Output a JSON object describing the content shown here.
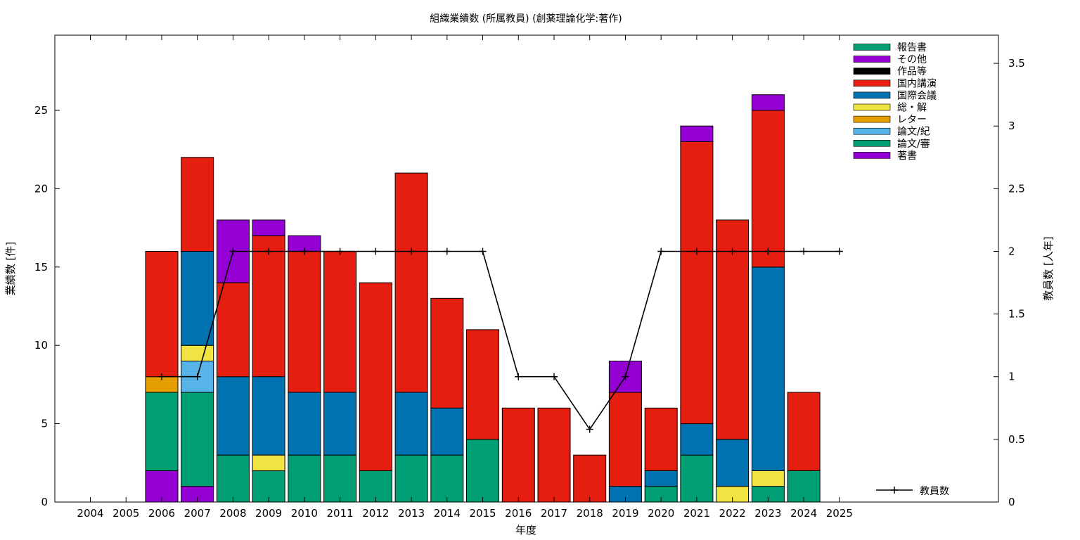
{
  "chart_data": {
    "type": "bar",
    "stacked": true,
    "title": "組織業績数 (所属教員) (創薬理論化学:著作)",
    "xlabel": "年度",
    "ylabel": "業績数 [件]",
    "y2label": "教員数 [人年]",
    "ylim": [
      0,
      29.8
    ],
    "y2lim": [
      0,
      3.725
    ],
    "yticks": [
      0,
      5,
      10,
      15,
      20,
      25
    ],
    "y2ticks": [
      "0",
      "0.5",
      "1",
      "1.5",
      "2",
      "2.5",
      "3",
      "3.5"
    ],
    "grid": false,
    "legend_position": "top-right",
    "categories": [
      "2004",
      "2005",
      "2006",
      "2007",
      "2008",
      "2009",
      "2010",
      "2011",
      "2012",
      "2013",
      "2014",
      "2015",
      "2016",
      "2017",
      "2018",
      "2019",
      "2020",
      "2021",
      "2022",
      "2023",
      "2024",
      "2025"
    ],
    "series": [
      {
        "name": "著書",
        "color": "#9400d3",
        "values": [
          0,
          0,
          2,
          1,
          0,
          0,
          0,
          0,
          0,
          0,
          0,
          0,
          0,
          0,
          0,
          0,
          0,
          0,
          0,
          0,
          0,
          0
        ]
      },
      {
        "name": "論文/審",
        "color": "#009e73",
        "values": [
          0,
          0,
          5,
          6,
          3,
          2,
          3,
          3,
          2,
          3,
          3,
          4,
          0,
          0,
          0,
          0,
          1,
          3,
          0,
          1,
          2,
          0
        ]
      },
      {
        "name": "論文/紀",
        "color": "#56b4e9",
        "values": [
          0,
          0,
          0,
          2,
          0,
          0,
          0,
          0,
          0,
          0,
          0,
          0,
          0,
          0,
          0,
          0,
          0,
          0,
          0,
          0,
          0,
          0
        ]
      },
      {
        "name": "レター",
        "color": "#e69f00",
        "values": [
          0,
          0,
          1,
          0,
          0,
          0,
          0,
          0,
          0,
          0,
          0,
          0,
          0,
          0,
          0,
          0,
          0,
          0,
          0,
          0,
          0,
          0
        ]
      },
      {
        "name": "総・解",
        "color": "#f0e442",
        "values": [
          0,
          0,
          0,
          1,
          0,
          1,
          0,
          0,
          0,
          0,
          0,
          0,
          0,
          0,
          0,
          0,
          0,
          0,
          1,
          1,
          0,
          0
        ]
      },
      {
        "name": "国際会議",
        "color": "#0072b2",
        "values": [
          0,
          0,
          0,
          6,
          5,
          5,
          4,
          4,
          0,
          4,
          3,
          0,
          0,
          0,
          0,
          1,
          1,
          2,
          3,
          13,
          0,
          0
        ]
      },
      {
        "name": "国内講演",
        "color": "#e51e10",
        "values": [
          0,
          0,
          8,
          6,
          6,
          9,
          9,
          9,
          12,
          14,
          7,
          7,
          6,
          6,
          3,
          6,
          4,
          18,
          14,
          10,
          5,
          0
        ]
      },
      {
        "name": "作品等",
        "color": "#000000",
        "values": [
          0,
          0,
          0,
          0,
          0,
          0,
          0,
          0,
          0,
          0,
          0,
          0,
          0,
          0,
          0,
          0,
          0,
          0,
          0,
          0,
          0,
          0
        ]
      },
      {
        "name": "その他",
        "color": "#9400d3",
        "values": [
          0,
          0,
          0,
          0,
          4,
          1,
          1,
          0,
          0,
          0,
          0,
          0,
          0,
          0,
          0,
          2,
          0,
          1,
          0,
          1,
          0,
          0
        ]
      },
      {
        "name": "報告書",
        "color": "#009e73",
        "values": [
          0,
          0,
          0,
          0,
          0,
          0,
          0,
          0,
          0,
          0,
          0,
          0,
          0,
          0,
          0,
          0,
          0,
          0,
          0,
          0,
          0,
          0
        ]
      }
    ],
    "line_series": {
      "name": "教員数",
      "color": "#000000",
      "axis": "y2",
      "categories": [
        "2006",
        "2007",
        "2008",
        "2009",
        "2010",
        "2011",
        "2012",
        "2013",
        "2014",
        "2015",
        "2016",
        "2017",
        "2018",
        "2019",
        "2020",
        "2021",
        "2022",
        "2023",
        "2024",
        "2025"
      ],
      "values": [
        1,
        1,
        2,
        2,
        2,
        2,
        2,
        2,
        2,
        2,
        1,
        1,
        0.58,
        1,
        2,
        2,
        2,
        2,
        2,
        2
      ]
    },
    "legend_order": [
      "報告書",
      "その他",
      "作品等",
      "国内講演",
      "国際会議",
      "総・解",
      "レター",
      "論文/紀",
      "論文/審",
      "著書"
    ]
  }
}
